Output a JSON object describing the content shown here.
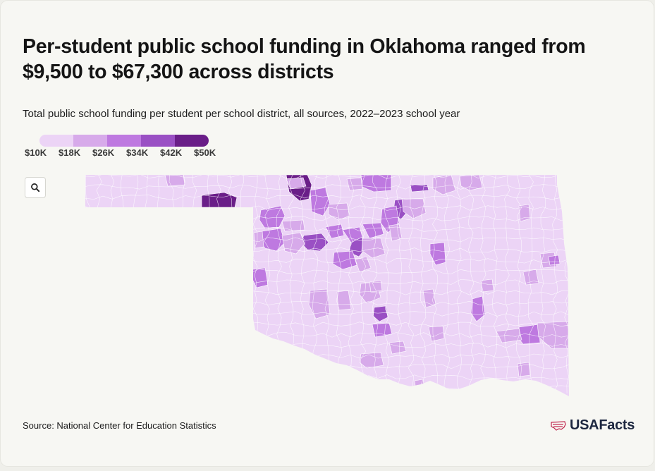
{
  "header": {
    "title": "Per-student public school funding in Oklahoma ranged from $9,500 to $67,300 across districts",
    "subtitle": "Total public school funding per student per school district, all sources, 2022–2023 school year"
  },
  "legend": {
    "colors": [
      "#ecd4f6",
      "#d7aaea",
      "#be79e0",
      "#9a50c4",
      "#6a1e88"
    ],
    "labels": [
      "$10K",
      "$18K",
      "$26K",
      "$34K",
      "$42K",
      "$50K"
    ]
  },
  "map": {
    "state": "Oklahoma",
    "base_color": "#ecd4f6",
    "border_color": "#ffffff",
    "zoom_icon": "search-icon"
  },
  "footer": {
    "source": "Source: National Center for Education Statistics",
    "brand": "USAFacts",
    "brand_icon": "us-flag-map-icon",
    "brand_color": "#c0254c"
  }
}
